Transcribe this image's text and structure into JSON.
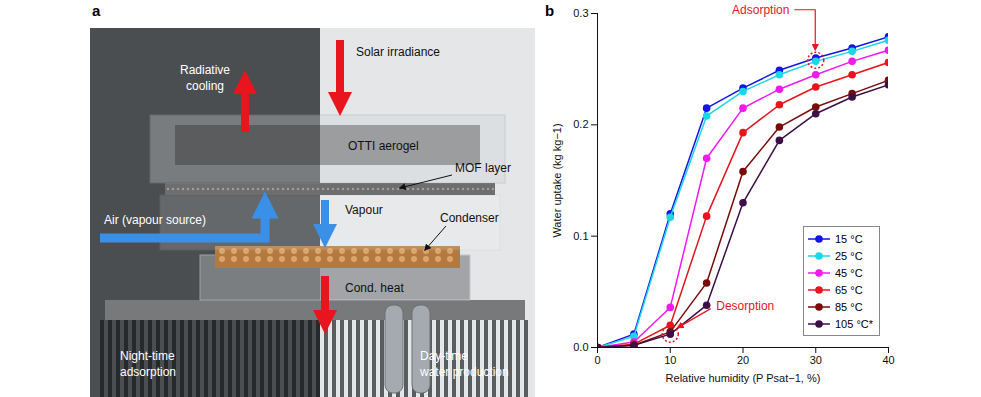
{
  "figure": {
    "panel_a": {
      "label": "a",
      "texts": {
        "radiative_cooling": [
          "Radiative",
          "cooling"
        ],
        "solar_irradiance": "Solar irradiance",
        "otti_aerogel": "OTTI aerogel",
        "mof_layer": "MOF layer",
        "air": "Air (vapour source)",
        "vapour": "Vapour",
        "condenser": "Condenser",
        "cond_heat": "Cond. heat",
        "night": [
          "Night-time",
          "adsorption"
        ],
        "day": [
          "Day-time",
          "water production"
        ]
      }
    }
  },
  "chart_data": {
    "panel_label": "b",
    "type": "line",
    "x_label": "Relative humidity (P Psat−1, %)",
    "y_label": "Water uptake (kg kg−1)",
    "x": [
      0,
      5,
      10,
      15,
      20,
      25,
      30,
      35,
      40
    ],
    "series": [
      {
        "name": "15 °C",
        "color": "#1414e6",
        "marker": "circle",
        "values": [
          0,
          0.012,
          0.12,
          0.215,
          0.233,
          0.249,
          0.26,
          0.269,
          0.279
        ]
      },
      {
        "name": "25 °C",
        "color": "#19d7e6",
        "marker": "circle",
        "values": [
          0,
          0.01,
          0.117,
          0.208,
          0.23,
          0.245,
          0.257,
          0.266,
          0.276
        ]
      },
      {
        "name": "45 °C",
        "color": "#f019f0",
        "marker": "circle",
        "values": [
          0,
          0.005,
          0.036,
          0.17,
          0.215,
          0.232,
          0.245,
          0.257,
          0.267
        ]
      },
      {
        "name": "65 °C",
        "color": "#e8141e",
        "marker": "circle",
        "values": [
          0,
          0.003,
          0.02,
          0.118,
          0.193,
          0.218,
          0.234,
          0.245,
          0.256
        ]
      },
      {
        "name": "85 °C",
        "color": "#7a0a0a",
        "marker": "circle",
        "values": [
          0,
          0.002,
          0.014,
          0.058,
          0.158,
          0.198,
          0.216,
          0.228,
          0.24
        ]
      },
      {
        "name": "105 °C*",
        "color": "#3c0f46",
        "marker": "circle",
        "values": [
          0,
          0.002,
          0.012,
          0.038,
          0.13,
          0.186,
          0.21,
          0.225,
          0.236
        ]
      }
    ],
    "xlim": [
      0,
      40
    ],
    "xticks": [
      0,
      10,
      20,
      30,
      40
    ],
    "ylim": [
      0,
      0.3
    ],
    "yticks": [
      {
        "value": 0,
        "label": "0.0"
      },
      {
        "value": 0.1,
        "label": "0.1"
      },
      {
        "value": 0.2,
        "label": "0.2"
      },
      {
        "value": 0.3,
        "label": "0.3"
      }
    ],
    "grid": false,
    "legend": "lower right",
    "annotations": [
      {
        "text": "Adsorption",
        "x": 30,
        "y": 0.258,
        "color": "#e8141e"
      },
      {
        "text": "Desorption",
        "x": 10,
        "y": 0.012,
        "color": "#e8141e"
      }
    ]
  }
}
